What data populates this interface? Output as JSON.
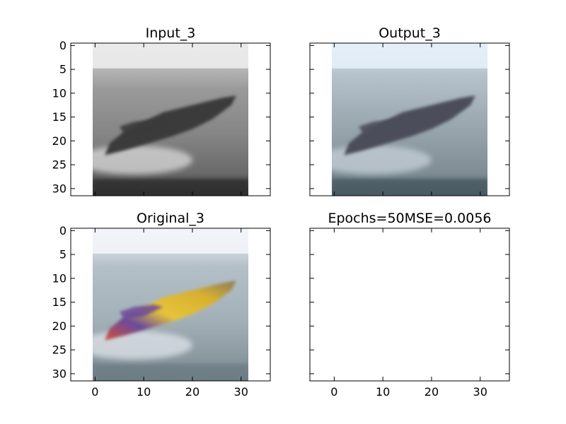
{
  "figure": {
    "background": "#ffffff"
  },
  "chart_data": [
    {
      "type": "image",
      "title": "Input_3",
      "xlim": [
        -5,
        36
      ],
      "ylim": [
        31.5,
        -0.5
      ],
      "image_extent": [
        -0.5,
        31.5,
        31.5,
        -0.5
      ],
      "xticks": [
        0,
        10,
        20,
        30
      ],
      "yticks": [
        0,
        5,
        10,
        15,
        20,
        25,
        30
      ],
      "show_xtick_labels": false,
      "show_ytick_labels": true,
      "content": "grayscale_boat",
      "image_colors": {
        "sky": "#ececec",
        "sea": "#8a8a8a",
        "boat": "#3a3a3a",
        "wake": "#dadada",
        "bottom": "#2e2e2e"
      }
    },
    {
      "type": "image",
      "title": "Output_3",
      "xlim": [
        -5,
        36
      ],
      "ylim": [
        31.5,
        -0.5
      ],
      "image_extent": [
        -0.5,
        31.5,
        31.5,
        -0.5
      ],
      "xticks": [
        0,
        10,
        20,
        30
      ],
      "yticks": [
        0,
        5,
        10,
        15,
        20,
        25,
        30
      ],
      "show_xtick_labels": false,
      "show_ytick_labels": false,
      "content": "reconstructed_boat",
      "image_colors": {
        "sky": "#e4eef8",
        "sea": "#8d9aa4",
        "boat": "#4b4e5a",
        "wake": "#c6d0d8",
        "bottom": "#4a5a62"
      }
    },
    {
      "type": "image",
      "title": "Original_3",
      "xlim": [
        -5,
        36
      ],
      "ylim": [
        31.5,
        -0.5
      ],
      "image_extent": [
        -0.5,
        31.5,
        31.5,
        -0.5
      ],
      "xticks": [
        0,
        10,
        20,
        30
      ],
      "yticks": [
        0,
        5,
        10,
        15,
        20,
        25,
        30
      ],
      "show_xtick_labels": true,
      "show_ytick_labels": true,
      "content": "color_boat",
      "image_colors": {
        "sky": "#f2f4f8",
        "sea": "#9aa8b2",
        "boat_yellow": "#e6c43a",
        "boat_purple": "#6a4a9a",
        "boat_red": "#d0503a",
        "wake": "#e0e4ea",
        "bottom": "#6e7e86"
      }
    },
    {
      "type": "image",
      "title": "Epochs=50MSE=0.0056",
      "xlim": [
        -5,
        36
      ],
      "ylim": [
        31.5,
        -0.5
      ],
      "xticks": [
        0,
        10,
        20,
        30
      ],
      "yticks": [
        0,
        5,
        10,
        15,
        20,
        25,
        30
      ],
      "show_xtick_labels": true,
      "show_ytick_labels": false,
      "content": "empty"
    }
  ]
}
